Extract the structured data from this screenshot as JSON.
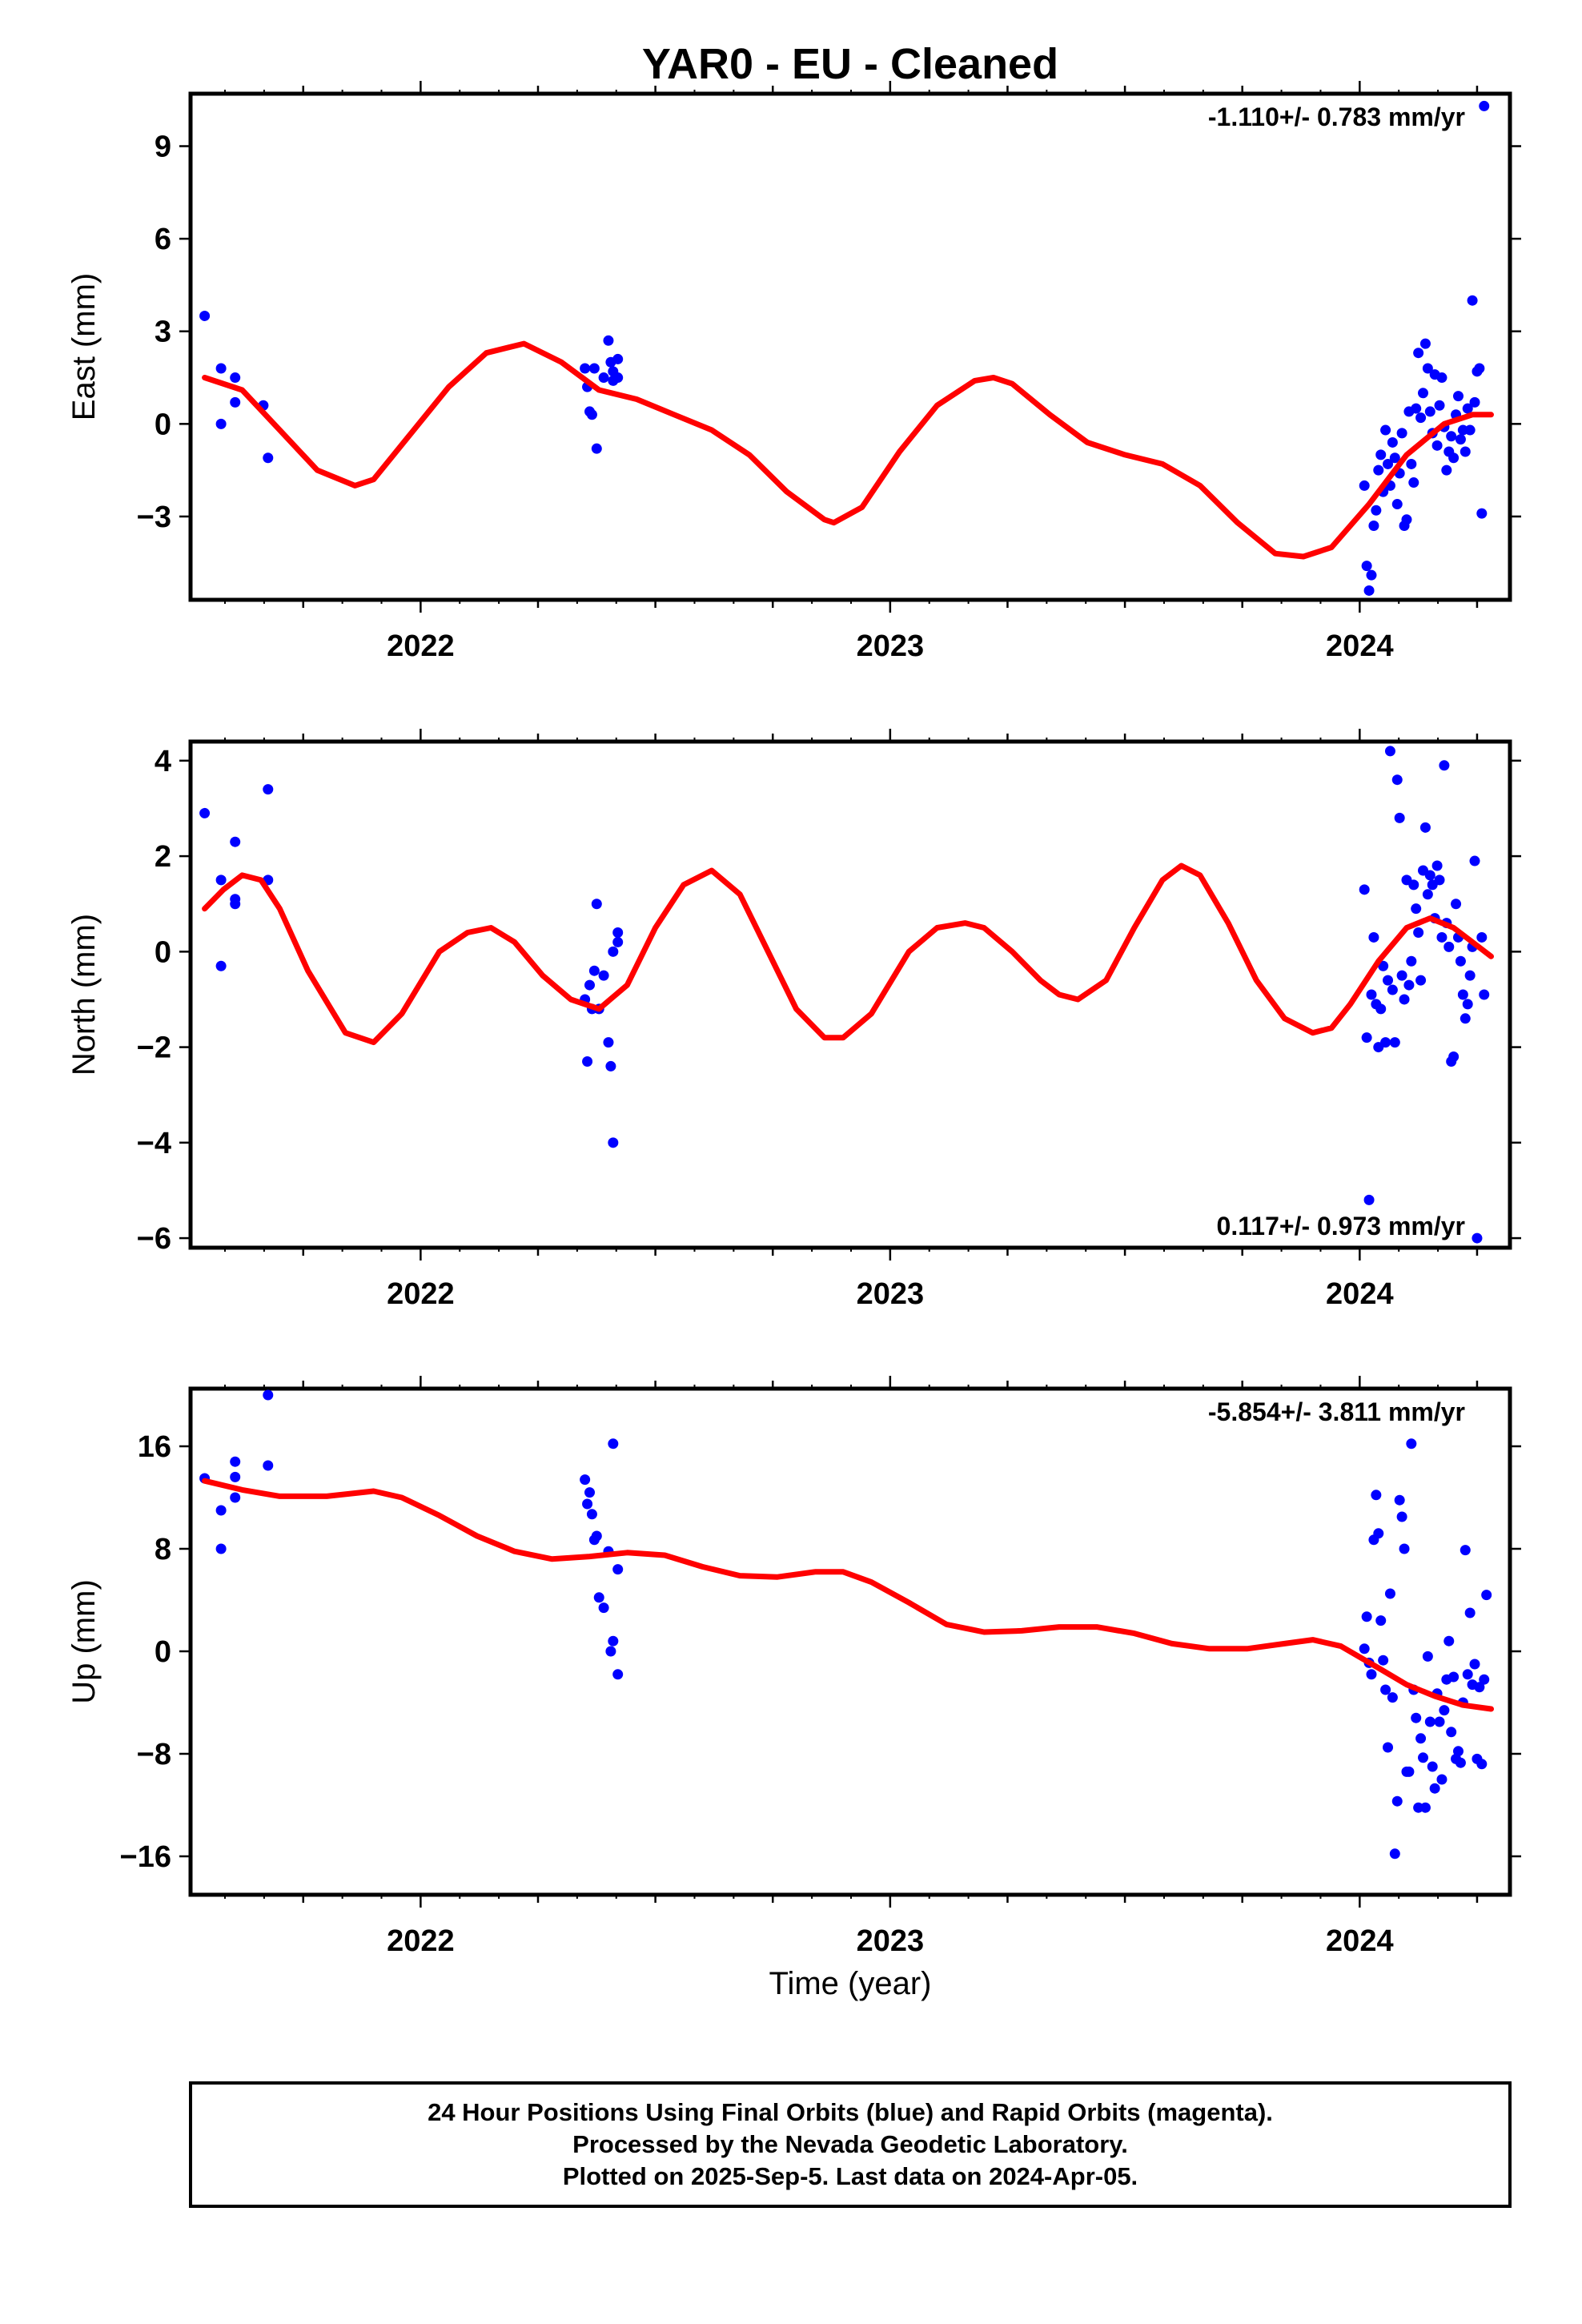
{
  "title": "YAR0  - EU - Cleaned",
  "xlabel": "Time (year)",
  "caption": [
    "24 Hour Positions Using Final Orbits (blue) and Rapid Orbits (magenta).",
    "Processed by the Nevada Geodetic Laboratory.",
    "Plotted on 2025-Sep-5. Last data on 2024-Apr-05."
  ],
  "colors": {
    "final": "#0000ff",
    "model": "#ff0000",
    "frame": "#000000"
  },
  "chart_data": [
    {
      "type": "scatter",
      "ylabel": "East (mm)",
      "rate": "-1.110+/- 0.783 mm/yr",
      "rate_position": "top-right",
      "xlim": [
        2021.51,
        2024.32
      ],
      "ylim": [
        -5.7,
        10.7
      ],
      "xticks": [
        2022,
        2023,
        2024
      ],
      "xtick_labels": [
        "2022",
        "2023",
        "2024"
      ],
      "yticks": [
        -3,
        0,
        3,
        6,
        9
      ],
      "ytick_labels": [
        "−3",
        "0",
        "3",
        "6",
        "9"
      ],
      "series": [
        {
          "style": "points",
          "x": [
            2021.54,
            2021.575,
            2021.575,
            2021.605,
            2021.605,
            2021.675,
            2021.665,
            2022.35,
            2022.355,
            2022.36,
            2022.365,
            2022.37,
            2022.375,
            2022.39,
            2022.4,
            2022.405,
            2022.41,
            2022.41,
            2022.42,
            2022.42,
            2024.01,
            2024.015,
            2024.02,
            2024.025,
            2024.03,
            2024.035,
            2024.04,
            2024.045,
            2024.05,
            2024.055,
            2024.06,
            2024.065,
            2024.07,
            2024.075,
            2024.08,
            2024.085,
            2024.09,
            2024.095,
            2024.1,
            2024.105,
            2024.11,
            2024.115,
            2024.12,
            2024.125,
            2024.13,
            2024.135,
            2024.14,
            2024.145,
            2024.15,
            2024.155,
            2024.16,
            2024.165,
            2024.17,
            2024.175,
            2024.18,
            2024.185,
            2024.19,
            2024.195,
            2024.2,
            2024.205,
            2024.21,
            2024.215,
            2024.22,
            2024.225,
            2024.23,
            2024.235,
            2024.24,
            2024.245,
            2024.25,
            2024.255,
            2024.26,
            2024.265
          ],
          "y": [
            3.5,
            1.8,
            0.0,
            1.5,
            0.7,
            -1.1,
            0.6,
            1.8,
            1.2,
            0.4,
            0.3,
            1.8,
            -0.8,
            1.5,
            2.7,
            2.0,
            1.4,
            1.7,
            2.1,
            1.5,
            -2.0,
            -4.6,
            -5.4,
            -4.9,
            -3.3,
            -2.8,
            -1.5,
            -1.0,
            -2.2,
            -0.2,
            -1.3,
            -2.0,
            -0.6,
            -1.1,
            -2.6,
            -1.6,
            -0.3,
            -3.3,
            -3.1,
            0.4,
            -1.3,
            -1.9,
            0.5,
            2.3,
            0.2,
            1.0,
            2.6,
            1.8,
            0.4,
            -0.3,
            1.6,
            -0.7,
            0.6,
            1.5,
            -0.1,
            -1.5,
            -0.9,
            -0.4,
            -1.1,
            0.3,
            0.9,
            -0.5,
            -0.2,
            -0.9,
            0.5,
            -0.2,
            4.0,
            0.7,
            1.7,
            1.8,
            -2.9,
            10.3
          ]
        },
        {
          "style": "line",
          "x": [
            2021.54,
            2021.62,
            2021.7,
            2021.78,
            2021.86,
            2021.9,
            2021.98,
            2022.06,
            2022.14,
            2022.22,
            2022.3,
            2022.38,
            2022.46,
            2022.54,
            2022.62,
            2022.7,
            2022.78,
            2022.86,
            2022.88,
            2022.94,
            2023.02,
            2023.1,
            2023.18,
            2023.22,
            2023.26,
            2023.34,
            2023.42,
            2023.5,
            2023.58,
            2023.66,
            2023.74,
            2023.82,
            2023.88,
            2023.94,
            2024.02,
            2024.1,
            2024.18,
            2024.24,
            2024.28
          ],
          "y": [
            1.5,
            1.1,
            -0.2,
            -1.5,
            -2.0,
            -1.8,
            -0.3,
            1.2,
            2.3,
            2.6,
            2.0,
            1.1,
            0.8,
            0.3,
            -0.2,
            -1.0,
            -2.2,
            -3.1,
            -3.2,
            -2.7,
            -0.9,
            0.6,
            1.4,
            1.5,
            1.3,
            0.3,
            -0.6,
            -1.0,
            -1.3,
            -2.0,
            -3.2,
            -4.2,
            -4.3,
            -4.0,
            -2.6,
            -1.0,
            0.0,
            0.3,
            0.3
          ]
        }
      ]
    },
    {
      "type": "scatter",
      "ylabel": "North (mm)",
      "rate": "0.117+/- 0.973 mm/yr",
      "rate_position": "bottom-right",
      "xlim": [
        2021.51,
        2024.32
      ],
      "ylim": [
        -6.2,
        4.4
      ],
      "xticks": [
        2022,
        2023,
        2024
      ],
      "xtick_labels": [
        "2022",
        "2023",
        "2024"
      ],
      "yticks": [
        -6,
        -4,
        -2,
        0,
        2,
        4
      ],
      "ytick_labels": [
        "−6",
        "−4",
        "−2",
        "0",
        "2",
        "4"
      ],
      "series": [
        {
          "style": "points",
          "x": [
            2021.54,
            2021.575,
            2021.575,
            2021.605,
            2021.605,
            2021.605,
            2021.675,
            2021.675,
            2022.35,
            2022.355,
            2022.36,
            2022.365,
            2022.37,
            2022.375,
            2022.38,
            2022.39,
            2022.4,
            2022.405,
            2022.41,
            2022.41,
            2022.42,
            2022.42,
            2024.01,
            2024.015,
            2024.02,
            2024.025,
            2024.03,
            2024.035,
            2024.04,
            2024.045,
            2024.05,
            2024.055,
            2024.06,
            2024.065,
            2024.07,
            2024.075,
            2024.08,
            2024.085,
            2024.09,
            2024.095,
            2024.1,
            2024.105,
            2024.11,
            2024.115,
            2024.12,
            2024.125,
            2024.13,
            2024.135,
            2024.14,
            2024.145,
            2024.15,
            2024.155,
            2024.16,
            2024.165,
            2024.17,
            2024.175,
            2024.18,
            2024.185,
            2024.19,
            2024.195,
            2024.2,
            2024.205,
            2024.21,
            2024.215,
            2024.22,
            2024.225,
            2024.23,
            2024.235,
            2024.24,
            2024.245,
            2024.25,
            2024.26,
            2024.265
          ],
          "y": [
            2.9,
            1.5,
            -0.3,
            2.3,
            1.0,
            1.1,
            1.5,
            3.4,
            -1.0,
            -2.3,
            -0.7,
            -1.2,
            -0.4,
            1.0,
            -1.2,
            -0.5,
            -1.9,
            -2.4,
            -4.0,
            0.0,
            0.2,
            0.4,
            1.3,
            -1.8,
            -5.2,
            -0.9,
            0.3,
            -1.1,
            -2.0,
            -1.2,
            -0.3,
            -1.9,
            -0.6,
            4.2,
            -0.8,
            -1.9,
            3.6,
            2.8,
            -0.5,
            -1.0,
            1.5,
            -0.7,
            -0.2,
            1.4,
            0.9,
            0.4,
            -0.6,
            1.7,
            2.6,
            1.2,
            1.6,
            1.4,
            0.7,
            1.8,
            1.5,
            0.3,
            3.9,
            0.6,
            0.1,
            -2.3,
            -2.2,
            1.0,
            0.3,
            -0.2,
            -0.9,
            -1.4,
            -1.1,
            -0.5,
            0.1,
            1.9,
            -6.0,
            0.3,
            -0.9
          ]
        },
        {
          "style": "line",
          "x": [
            2021.54,
            2021.58,
            2021.62,
            2021.66,
            2021.7,
            2021.76,
            2021.84,
            2021.9,
            2021.96,
            2022.04,
            2022.1,
            2022.15,
            2022.2,
            2022.26,
            2022.32,
            2022.38,
            2022.44,
            2022.5,
            2022.56,
            2022.62,
            2022.68,
            2022.74,
            2022.8,
            2022.86,
            2022.9,
            2022.96,
            2023.04,
            2023.1,
            2023.16,
            2023.2,
            2023.26,
            2023.32,
            2023.36,
            2023.4,
            2023.46,
            2023.52,
            2023.58,
            2023.62,
            2023.66,
            2023.72,
            2023.78,
            2023.84,
            2023.9,
            2023.94,
            2023.98,
            2024.04,
            2024.1,
            2024.15,
            2024.2,
            2024.24,
            2024.28
          ],
          "y": [
            0.9,
            1.3,
            1.6,
            1.5,
            0.9,
            -0.4,
            -1.7,
            -1.9,
            -1.3,
            0.0,
            0.4,
            0.5,
            0.2,
            -0.5,
            -1.0,
            -1.2,
            -0.7,
            0.5,
            1.4,
            1.7,
            1.2,
            0.0,
            -1.2,
            -1.8,
            -1.8,
            -1.3,
            0.0,
            0.5,
            0.6,
            0.5,
            0.0,
            -0.6,
            -0.9,
            -1.0,
            -0.6,
            0.5,
            1.5,
            1.8,
            1.6,
            0.6,
            -0.6,
            -1.4,
            -1.7,
            -1.6,
            -1.1,
            -0.2,
            0.5,
            0.7,
            0.5,
            0.2,
            -0.1
          ]
        }
      ]
    },
    {
      "type": "scatter",
      "ylabel": "Up (mm)",
      "rate": "-5.854+/- 3.811 mm/yr",
      "rate_position": "top-right",
      "xlim": [
        2021.51,
        2024.32
      ],
      "ylim": [
        -19,
        20.5
      ],
      "xticks": [
        2022,
        2023,
        2024
      ],
      "xtick_labels": [
        "2022",
        "2023",
        "2024"
      ],
      "yticks": [
        -16,
        -8,
        0,
        8,
        16
      ],
      "ytick_labels": [
        "−16",
        "−8",
        "0",
        "8",
        "16"
      ],
      "series": [
        {
          "style": "points",
          "x": [
            2021.54,
            2021.575,
            2021.575,
            2021.605,
            2021.605,
            2021.605,
            2021.675,
            2021.675,
            2022.35,
            2022.355,
            2022.36,
            2022.365,
            2022.37,
            2022.375,
            2022.38,
            2022.39,
            2022.4,
            2022.405,
            2022.41,
            2022.41,
            2022.42,
            2022.42,
            2024.01,
            2024.015,
            2024.02,
            2024.025,
            2024.03,
            2024.035,
            2024.04,
            2024.045,
            2024.05,
            2024.055,
            2024.06,
            2024.065,
            2024.07,
            2024.075,
            2024.08,
            2024.085,
            2024.09,
            2024.095,
            2024.1,
            2024.105,
            2024.11,
            2024.115,
            2024.12,
            2024.125,
            2024.13,
            2024.135,
            2024.14,
            2024.145,
            2024.15,
            2024.155,
            2024.16,
            2024.165,
            2024.17,
            2024.175,
            2024.18,
            2024.185,
            2024.19,
            2024.195,
            2024.2,
            2024.205,
            2024.21,
            2024.215,
            2024.22,
            2024.225,
            2024.23,
            2024.235,
            2024.24,
            2024.245,
            2024.25,
            2024.255,
            2024.26,
            2024.265,
            2024.27
          ],
          "y": [
            13.5,
            8.0,
            11.0,
            14.8,
            12.0,
            13.6,
            14.5,
            20.0,
            13.4,
            11.5,
            12.4,
            10.7,
            8.7,
            9.0,
            4.2,
            3.4,
            7.8,
            0.0,
            0.8,
            16.2,
            6.4,
            -1.8,
            0.2,
            2.7,
            -0.9,
            -1.8,
            8.7,
            12.2,
            9.2,
            2.4,
            -0.7,
            -3.0,
            -7.5,
            4.5,
            -3.6,
            -15.8,
            -11.7,
            11.8,
            10.5,
            8.0,
            -9.4,
            -9.4,
            16.2,
            -3.0,
            -5.2,
            -12.2,
            -6.8,
            -8.3,
            -12.2,
            -0.4,
            -5.5,
            -9.0,
            -10.7,
            -3.3,
            -5.5,
            -10.0,
            -4.6,
            -2.2,
            0.8,
            -6.3,
            -2.0,
            -8.4,
            -7.8,
            -8.7,
            -4.0,
            7.9,
            -1.8,
            3.0,
            -2.6,
            -1.0,
            -8.4,
            -2.8,
            -8.8,
            -2.2,
            4.4
          ]
        },
        {
          "style": "line",
          "x": [
            2021.54,
            2021.62,
            2021.7,
            2021.8,
            2021.9,
            2021.96,
            2022.04,
            2022.12,
            2022.2,
            2022.28,
            2022.36,
            2022.44,
            2022.52,
            2022.6,
            2022.68,
            2022.76,
            2022.84,
            2022.9,
            2022.96,
            2023.04,
            2023.12,
            2023.2,
            2023.28,
            2023.36,
            2023.44,
            2023.52,
            2023.6,
            2023.68,
            2023.76,
            2023.84,
            2023.9,
            2023.96,
            2024.04,
            2024.1,
            2024.16,
            2024.22,
            2024.28
          ],
          "y": [
            13.3,
            12.6,
            12.1,
            12.1,
            12.5,
            12.0,
            10.6,
            9.0,
            7.8,
            7.2,
            7.4,
            7.7,
            7.5,
            6.6,
            5.9,
            5.8,
            6.2,
            6.2,
            5.4,
            3.8,
            2.1,
            1.5,
            1.6,
            1.9,
            1.9,
            1.4,
            0.6,
            0.2,
            0.2,
            0.6,
            0.9,
            0.4,
            -1.3,
            -2.6,
            -3.5,
            -4.2,
            -4.5
          ]
        }
      ]
    }
  ]
}
